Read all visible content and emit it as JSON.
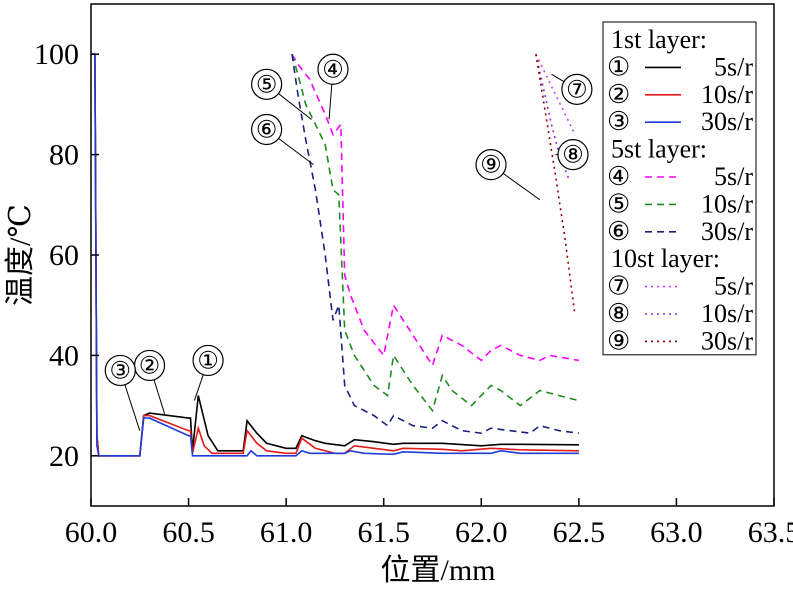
{
  "chart_data": {
    "type": "line",
    "xlabel": "位置/mm",
    "ylabel": "温度/℃",
    "xlim": [
      60.0,
      63.5
    ],
    "ylim": [
      10,
      110
    ],
    "xticks": [
      "60.0",
      "60.5",
      "61.0",
      "61.5",
      "62.0",
      "62.5",
      "63.0",
      "63.5"
    ],
    "yticks": [
      "20",
      "40",
      "60",
      "80",
      "100"
    ],
    "grid": false,
    "legend_placement": "top-right",
    "legend": [
      {
        "type": "header",
        "text": "1st layer:"
      },
      {
        "type": "entry",
        "marker": "①",
        "label": "5s/r",
        "series": 0
      },
      {
        "type": "entry",
        "marker": "②",
        "label": "10s/r",
        "series": 1
      },
      {
        "type": "entry",
        "marker": "③",
        "label": "30s/r",
        "series": 2
      },
      {
        "type": "header",
        "text": "5st layer:"
      },
      {
        "type": "entry",
        "marker": "④",
        "label": "5s/r",
        "series": 3
      },
      {
        "type": "entry",
        "marker": "⑤",
        "label": "10s/r",
        "series": 4
      },
      {
        "type": "entry",
        "marker": "⑥",
        "label": "30s/r",
        "series": 5
      },
      {
        "type": "header",
        "text": "10st layer:"
      },
      {
        "type": "entry",
        "marker": "⑦",
        "label": "5s/r",
        "series": 6
      },
      {
        "type": "entry",
        "marker": "⑧",
        "label": "10s/r",
        "series": 7
      },
      {
        "type": "entry",
        "marker": "⑨",
        "label": "30s/r",
        "series": 8
      }
    ],
    "series": [
      {
        "color": "#000000",
        "dash": "solid",
        "points": [
          [
            60.0,
            100
          ],
          [
            60.02,
            100
          ],
          [
            60.03,
            24
          ],
          [
            60.04,
            20
          ],
          [
            60.25,
            20
          ],
          [
            60.27,
            28
          ],
          [
            60.3,
            28.5
          ],
          [
            60.5,
            27.5
          ],
          [
            60.51,
            27.5
          ],
          [
            60.52,
            21
          ],
          [
            60.55,
            32
          ],
          [
            60.6,
            24
          ],
          [
            60.65,
            21
          ],
          [
            60.78,
            21
          ],
          [
            60.8,
            27
          ],
          [
            60.85,
            24.5
          ],
          [
            60.9,
            22.5
          ],
          [
            61.0,
            21.5
          ],
          [
            61.05,
            21.5
          ],
          [
            61.08,
            24
          ],
          [
            61.15,
            23
          ],
          [
            61.2,
            22.5
          ],
          [
            61.3,
            22
          ],
          [
            61.35,
            23.2
          ],
          [
            61.45,
            22.8
          ],
          [
            61.55,
            22.3
          ],
          [
            61.6,
            22.5
          ],
          [
            61.8,
            22.5
          ],
          [
            62.0,
            22
          ],
          [
            62.1,
            22.3
          ],
          [
            62.2,
            22.3
          ],
          [
            62.5,
            22.2
          ]
        ]
      },
      {
        "color": "#e41a1c",
        "dash": "solid",
        "points": [
          [
            60.0,
            100
          ],
          [
            60.02,
            100
          ],
          [
            60.03,
            24
          ],
          [
            60.04,
            20
          ],
          [
            60.25,
            20
          ],
          [
            60.27,
            28
          ],
          [
            60.3,
            28
          ],
          [
            60.5,
            25
          ],
          [
            60.51,
            25
          ],
          [
            60.52,
            20.5
          ],
          [
            60.55,
            25.5
          ],
          [
            60.58,
            22
          ],
          [
            60.62,
            20.5
          ],
          [
            60.78,
            20.5
          ],
          [
            60.8,
            25
          ],
          [
            60.85,
            22.5
          ],
          [
            60.9,
            21
          ],
          [
            61.0,
            20.5
          ],
          [
            61.05,
            20.5
          ],
          [
            61.08,
            23.5
          ],
          [
            61.15,
            21.5
          ],
          [
            61.25,
            20.5
          ],
          [
            61.3,
            20.5
          ],
          [
            61.35,
            22
          ],
          [
            61.45,
            21.5
          ],
          [
            61.55,
            21
          ],
          [
            61.6,
            21.5
          ],
          [
            61.8,
            21.3
          ],
          [
            61.9,
            21
          ],
          [
            62.05,
            21.5
          ],
          [
            62.2,
            21.2
          ],
          [
            62.5,
            21
          ]
        ]
      },
      {
        "color": "#1f3bd8",
        "dash": "solid",
        "points": [
          [
            60.0,
            100
          ],
          [
            60.02,
            100
          ],
          [
            60.03,
            22
          ],
          [
            60.04,
            20
          ],
          [
            60.25,
            20
          ],
          [
            60.27,
            27.5
          ],
          [
            60.3,
            27.5
          ],
          [
            60.5,
            24
          ],
          [
            60.51,
            24
          ],
          [
            60.52,
            20
          ],
          [
            60.8,
            20
          ],
          [
            60.82,
            21
          ],
          [
            60.85,
            20
          ],
          [
            61.0,
            20
          ],
          [
            61.05,
            20
          ],
          [
            61.08,
            21
          ],
          [
            61.12,
            20.5
          ],
          [
            61.3,
            20.5
          ],
          [
            61.33,
            21
          ],
          [
            61.4,
            20.5
          ],
          [
            61.55,
            20.3
          ],
          [
            61.6,
            20.8
          ],
          [
            61.8,
            20.5
          ],
          [
            62.05,
            20.5
          ],
          [
            62.1,
            21
          ],
          [
            62.2,
            20.5
          ],
          [
            62.5,
            20.5
          ]
        ]
      },
      {
        "color": "#ff00ff",
        "dash": "dashed",
        "points": [
          [
            61.03,
            100
          ],
          [
            61.06,
            98
          ],
          [
            61.12,
            95
          ],
          [
            61.2,
            88
          ],
          [
            61.24,
            84
          ],
          [
            61.28,
            86
          ],
          [
            61.3,
            56
          ],
          [
            61.33,
            52
          ],
          [
            61.4,
            45
          ],
          [
            61.5,
            40
          ],
          [
            61.55,
            50
          ],
          [
            61.65,
            44
          ],
          [
            61.75,
            38
          ],
          [
            61.8,
            44
          ],
          [
            61.9,
            42
          ],
          [
            62.0,
            39
          ],
          [
            62.05,
            41
          ],
          [
            62.1,
            42
          ],
          [
            62.2,
            40
          ],
          [
            62.3,
            39
          ],
          [
            62.35,
            40
          ],
          [
            62.5,
            39
          ]
        ]
      },
      {
        "color": "#1e8c1e",
        "dash": "dashed",
        "points": [
          [
            61.03,
            100
          ],
          [
            61.06,
            96
          ],
          [
            61.1,
            90
          ],
          [
            61.2,
            82
          ],
          [
            61.24,
            73
          ],
          [
            61.27,
            72
          ],
          [
            61.3,
            45
          ],
          [
            61.35,
            40
          ],
          [
            61.45,
            34
          ],
          [
            61.52,
            32
          ],
          [
            61.55,
            40
          ],
          [
            61.65,
            34
          ],
          [
            61.75,
            29
          ],
          [
            61.8,
            36
          ],
          [
            61.85,
            33
          ],
          [
            61.95,
            30
          ],
          [
            62.05,
            34
          ],
          [
            62.1,
            33
          ],
          [
            62.2,
            30
          ],
          [
            62.3,
            33
          ],
          [
            62.4,
            32
          ],
          [
            62.5,
            31
          ]
        ]
      },
      {
        "color": "#1a237e",
        "dash": "dashed",
        "points": [
          [
            61.03,
            100
          ],
          [
            61.06,
            92
          ],
          [
            61.1,
            83
          ],
          [
            61.15,
            73
          ],
          [
            61.2,
            60
          ],
          [
            61.24,
            47
          ],
          [
            61.27,
            50
          ],
          [
            61.3,
            34
          ],
          [
            61.35,
            30
          ],
          [
            61.45,
            28
          ],
          [
            61.52,
            26
          ],
          [
            61.55,
            28
          ],
          [
            61.65,
            26
          ],
          [
            61.75,
            25.5
          ],
          [
            61.8,
            27
          ],
          [
            61.9,
            25
          ],
          [
            62.0,
            24.5
          ],
          [
            62.05,
            25.5
          ],
          [
            62.15,
            25
          ],
          [
            62.25,
            24.5
          ],
          [
            62.3,
            26
          ],
          [
            62.4,
            25
          ],
          [
            62.5,
            24.5
          ]
        ]
      },
      {
        "color": "#c040ff",
        "dash": "dotted",
        "points": [
          [
            62.28,
            100
          ],
          [
            62.33,
            96
          ],
          [
            62.38,
            92
          ],
          [
            62.43,
            88
          ],
          [
            62.48,
            84
          ]
        ]
      },
      {
        "color": "#8a2be2",
        "dash": "dotted",
        "points": [
          [
            62.28,
            100
          ],
          [
            62.32,
            93
          ],
          [
            62.36,
            86
          ],
          [
            62.4,
            80
          ],
          [
            62.45,
            75
          ]
        ]
      },
      {
        "color": "#8b0000",
        "dash": "dotted",
        "points": [
          [
            62.28,
            100
          ],
          [
            62.33,
            88
          ],
          [
            62.38,
            76
          ],
          [
            62.43,
            63
          ],
          [
            62.48,
            48
          ]
        ]
      }
    ],
    "annotations": [
      {
        "text": "①",
        "x": 60.6,
        "y": 39.0,
        "tip": [
          60.53,
          31
        ]
      },
      {
        "text": "②",
        "x": 60.3,
        "y": 38.0,
        "tip": [
          60.38,
          28
        ]
      },
      {
        "text": "③",
        "x": 60.15,
        "y": 37.0,
        "tip": [
          60.25,
          25
        ]
      },
      {
        "text": "④",
        "x": 61.24,
        "y": 97.0,
        "tip": [
          61.22,
          87
        ]
      },
      {
        "text": "⑤",
        "x": 60.9,
        "y": 94.0,
        "tip": [
          61.13,
          87
        ]
      },
      {
        "text": "⑥",
        "x": 60.9,
        "y": 85.0,
        "tip": [
          61.14,
          78
        ]
      },
      {
        "text": "⑦",
        "x": 62.49,
        "y": 93.0,
        "tip": [
          62.36,
          96
        ]
      },
      {
        "text": "⑧",
        "x": 62.47,
        "y": 80.0,
        "tip": [
          62.38,
          80
        ]
      },
      {
        "text": "⑨",
        "x": 62.05,
        "y": 78.0,
        "tip": [
          62.3,
          71
        ]
      }
    ]
  }
}
